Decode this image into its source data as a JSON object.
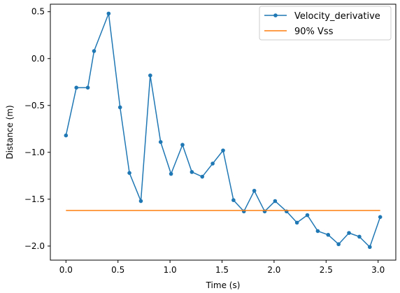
{
  "chart_data": {
    "type": "line",
    "title": "",
    "xlabel": "Time (s)",
    "ylabel": "Distance (m)",
    "xlim": [
      -0.15,
      3.17
    ],
    "ylim": [
      -2.15,
      0.58
    ],
    "xticks": [
      0.0,
      0.5,
      1.0,
      1.5,
      2.0,
      2.5,
      3.0
    ],
    "xtick_labels": [
      "0.0",
      "0.5",
      "1.0",
      "1.5",
      "2.0",
      "2.5",
      "3.0"
    ],
    "yticks": [
      0.5,
      0.0,
      -0.5,
      -1.0,
      -1.5,
      -2.0
    ],
    "ytick_labels": [
      "0.5",
      "0.0",
      "−0.5",
      "−1.0",
      "−1.5",
      "−2.0"
    ],
    "grid": false,
    "legend_position": "top-right",
    "series": [
      {
        "name": "Velocity_derivative",
        "color": "#1f77b4",
        "marker": "circle",
        "x": [
          0.0,
          0.1,
          0.21,
          0.27,
          0.41,
          0.52,
          0.61,
          0.72,
          0.81,
          0.91,
          1.01,
          1.12,
          1.21,
          1.31,
          1.41,
          1.51,
          1.61,
          1.71,
          1.81,
          1.91,
          2.01,
          2.12,
          2.22,
          2.32,
          2.42,
          2.52,
          2.62,
          2.72,
          2.82,
          2.92,
          3.02
        ],
        "y": [
          -0.82,
          -0.31,
          -0.31,
          0.08,
          0.48,
          -0.52,
          -1.22,
          -1.52,
          -0.18,
          -0.89,
          -1.23,
          -0.92,
          -1.21,
          -1.26,
          -1.12,
          -0.98,
          -1.51,
          -1.63,
          -1.41,
          -1.63,
          -1.52,
          -1.63,
          -1.75,
          -1.67,
          -1.84,
          -1.88,
          -1.98,
          -1.86,
          -1.9,
          -2.01,
          -1.69
        ]
      },
      {
        "name": "90% Vss",
        "color": "#ff7f0e",
        "marker": "none",
        "x": [
          0.0,
          3.02
        ],
        "y": [
          -1.62,
          -1.62
        ]
      }
    ]
  }
}
